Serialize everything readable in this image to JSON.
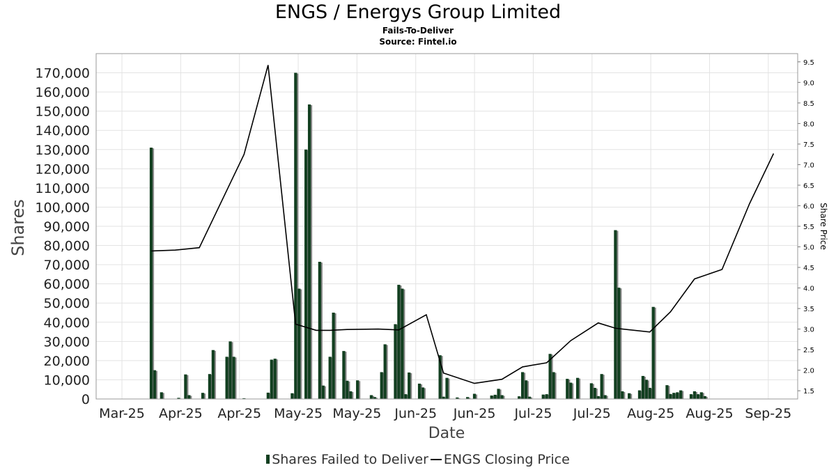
{
  "chart_data": {
    "type": "bar",
    "title": "ENGS / Energys Group Limited",
    "subtitle": "Fails-To-Deliver",
    "source": "Source: Fintel.io",
    "xlabel": "Date",
    "ylabel": "Shares",
    "y2label": "Share Price",
    "ylim": [
      0,
      180000
    ],
    "y2lim": [
      1.3,
      9.7
    ],
    "grid": true,
    "legend_position": "bottom-center",
    "colors": {
      "bars": "#123f20",
      "bar_shadow": "#8a8a8a",
      "line": "#000000",
      "grid": "#e3e3e3"
    },
    "x_ticks": [
      "Mar-25",
      "Apr-25",
      "Apr-25",
      "May-25",
      "May-25",
      "Jun-25",
      "Jun-25",
      "Jul-25",
      "Jul-25",
      "Aug-25",
      "Aug-25",
      "Sep-25"
    ],
    "y_ticks": [
      "0",
      "10,000",
      "20,000",
      "30,000",
      "40,000",
      "50,000",
      "60,000",
      "70,000",
      "80,000",
      "90,000",
      "100,000",
      "110,000",
      "120,000",
      "130,000",
      "140,000",
      "150,000",
      "160,000",
      "170,000"
    ],
    "y2_ticks": [
      "1.5",
      "2.0",
      "2.5",
      "3.0",
      "3.5",
      "4.0",
      "4.5",
      "5.0",
      "5.5",
      "6.0",
      "6.5",
      "7.0",
      "7.5",
      "8.0",
      "8.5",
      "9.0",
      "9.5"
    ],
    "date_range": [
      "2025-03-05",
      "2025-09-25"
    ],
    "series": [
      {
        "name": "Shares Failed to Deliver",
        "type": "bar",
        "points": [
          [
            "2025-03-21",
            131000
          ],
          [
            "2025-03-22",
            15000
          ],
          [
            "2025-03-24",
            3500
          ],
          [
            "2025-03-29",
            600
          ],
          [
            "2025-03-31",
            12800
          ],
          [
            "2025-04-01",
            2000
          ],
          [
            "2025-04-05",
            3200
          ],
          [
            "2025-04-07",
            13000
          ],
          [
            "2025-04-08",
            25500
          ],
          [
            "2025-04-12",
            22000
          ],
          [
            "2025-04-13",
            30000
          ],
          [
            "2025-04-14",
            22000
          ],
          [
            "2025-04-17",
            400
          ],
          [
            "2025-04-24",
            3300
          ],
          [
            "2025-04-25",
            20500
          ],
          [
            "2025-04-26",
            21000
          ],
          [
            "2025-05-01",
            3000
          ],
          [
            "2025-05-02",
            170000
          ],
          [
            "2025-05-03",
            57500
          ],
          [
            "2025-05-05",
            130000
          ],
          [
            "2025-05-06",
            153500
          ],
          [
            "2025-05-09",
            71500
          ],
          [
            "2025-05-10",
            7000
          ],
          [
            "2025-05-12",
            22000
          ],
          [
            "2025-05-13",
            45000
          ],
          [
            "2025-05-16",
            25000
          ],
          [
            "2025-05-17",
            9500
          ],
          [
            "2025-05-18",
            4000
          ],
          [
            "2025-05-20",
            9700
          ],
          [
            "2025-05-24",
            2000
          ],
          [
            "2025-05-25",
            1000
          ],
          [
            "2025-05-27",
            14000
          ],
          [
            "2025-05-28",
            28500
          ],
          [
            "2025-05-31",
            39000
          ],
          [
            "2025-06-01",
            59500
          ],
          [
            "2025-06-02",
            57500
          ],
          [
            "2025-06-03",
            2500
          ],
          [
            "2025-06-04",
            13800
          ],
          [
            "2025-06-07",
            8000
          ],
          [
            "2025-06-08",
            6000
          ],
          [
            "2025-06-13",
            22800
          ],
          [
            "2025-06-14",
            1200
          ],
          [
            "2025-06-15",
            11000
          ],
          [
            "2025-06-18",
            800
          ],
          [
            "2025-06-21",
            1000
          ],
          [
            "2025-06-23",
            2700
          ],
          [
            "2025-06-28",
            1800
          ],
          [
            "2025-06-29",
            2200
          ],
          [
            "2025-06-30",
            5300
          ],
          [
            "2025-07-01",
            2000
          ],
          [
            "2025-07-06",
            1400
          ],
          [
            "2025-07-07",
            14000
          ],
          [
            "2025-07-08",
            9700
          ],
          [
            "2025-07-09",
            1200
          ],
          [
            "2025-07-13",
            2300
          ],
          [
            "2025-07-14",
            2500
          ],
          [
            "2025-07-15",
            23500
          ],
          [
            "2025-07-16",
            14000
          ],
          [
            "2025-07-20",
            10500
          ],
          [
            "2025-07-21",
            8500
          ],
          [
            "2025-07-23",
            11000
          ],
          [
            "2025-07-27",
            8200
          ],
          [
            "2025-07-28",
            5800
          ],
          [
            "2025-07-29",
            1500
          ],
          [
            "2025-07-30",
            13000
          ],
          [
            "2025-07-31",
            2000
          ],
          [
            "2025-08-03",
            88000
          ],
          [
            "2025-08-04",
            58000
          ],
          [
            "2025-08-05",
            4000
          ],
          [
            "2025-08-07",
            3000
          ],
          [
            "2025-08-10",
            4500
          ],
          [
            "2025-08-11",
            12000
          ],
          [
            "2025-08-12",
            10000
          ],
          [
            "2025-08-13",
            5800
          ],
          [
            "2025-08-14",
            48000
          ],
          [
            "2025-08-18",
            7200
          ],
          [
            "2025-08-19",
            2600
          ],
          [
            "2025-08-20",
            3200
          ],
          [
            "2025-08-21",
            3500
          ],
          [
            "2025-08-22",
            4500
          ],
          [
            "2025-08-25",
            2500
          ],
          [
            "2025-08-26",
            4000
          ],
          [
            "2025-08-27",
            2500
          ],
          [
            "2025-08-28",
            3500
          ],
          [
            "2025-08-29",
            1500
          ]
        ]
      },
      {
        "name": "ENGS Closing Price",
        "type": "line",
        "points": [
          [
            "2025-03-21",
            4.9
          ],
          [
            "2025-03-28",
            4.92
          ],
          [
            "2025-04-04",
            4.98
          ],
          [
            "2025-04-17",
            7.25
          ],
          [
            "2025-04-24",
            9.42
          ],
          [
            "2025-05-02",
            3.12
          ],
          [
            "2025-05-08",
            2.97
          ],
          [
            "2025-05-12",
            2.97
          ],
          [
            "2025-05-17",
            2.99
          ],
          [
            "2025-05-26",
            3.0
          ],
          [
            "2025-06-01",
            2.98
          ],
          [
            "2025-06-09",
            3.35
          ],
          [
            "2025-06-14",
            1.93
          ],
          [
            "2025-06-23",
            1.68
          ],
          [
            "2025-07-01",
            1.78
          ],
          [
            "2025-07-07",
            2.08
          ],
          [
            "2025-07-14",
            2.18
          ],
          [
            "2025-07-21",
            2.72
          ],
          [
            "2025-07-29",
            3.15
          ],
          [
            "2025-08-03",
            3.02
          ],
          [
            "2025-08-13",
            2.93
          ],
          [
            "2025-08-19",
            3.42
          ],
          [
            "2025-08-26",
            4.22
          ],
          [
            "2025-09-03",
            4.45
          ],
          [
            "2025-09-11",
            6.05
          ],
          [
            "2025-09-18",
            7.27
          ]
        ]
      }
    ]
  }
}
